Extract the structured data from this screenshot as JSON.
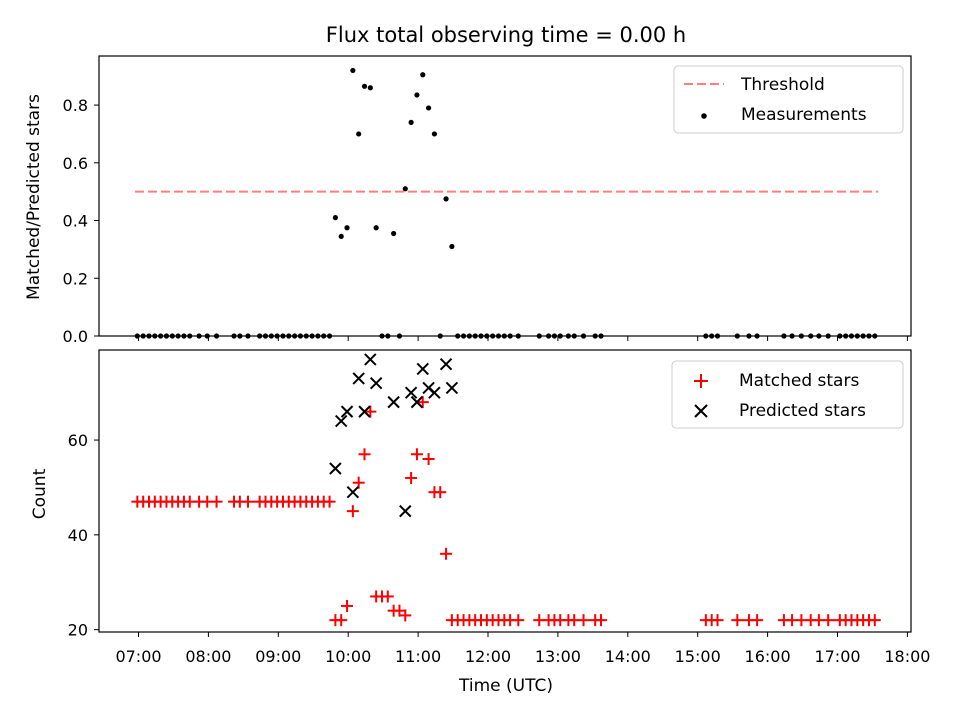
{
  "chart_data": {
    "type": "scatter",
    "title": "Flux total observing time = 0.00 h",
    "xlabel": "Time (UTC)",
    "x_ticks": [
      "07:00",
      "08:00",
      "09:00",
      "10:00",
      "11:00",
      "12:00",
      "13:00",
      "14:00",
      "15:00",
      "16:00",
      "17:00",
      "18:00"
    ],
    "top": {
      "ylabel": "Matched/Predicted stars",
      "ylim": [
        0,
        0.97
      ],
      "y_ticks": [
        "0.0",
        "0.2",
        "0.4",
        "0.6",
        "0.8"
      ],
      "threshold": {
        "name": "Threshold",
        "value": 0.5,
        "x_range": [
          "06:57",
          "17:35"
        ],
        "color": "#ff7f7f"
      },
      "measurements": {
        "name": "Measurements",
        "color": "#000000",
        "points": [
          [
            "06:59",
            0
          ],
          [
            "07:04",
            0
          ],
          [
            "07:09",
            0
          ],
          [
            "07:14",
            0
          ],
          [
            "07:19",
            0
          ],
          [
            "07:24",
            0
          ],
          [
            "07:29",
            0
          ],
          [
            "07:34",
            0
          ],
          [
            "07:39",
            0
          ],
          [
            "07:44",
            0
          ],
          [
            "07:52",
            0
          ],
          [
            "07:59",
            0
          ],
          [
            "08:07",
            0
          ],
          [
            "08:22",
            0
          ],
          [
            "08:27",
            0
          ],
          [
            "08:34",
            0
          ],
          [
            "08:44",
            0
          ],
          [
            "08:49",
            0
          ],
          [
            "08:54",
            0
          ],
          [
            "08:59",
            0
          ],
          [
            "09:04",
            0
          ],
          [
            "09:09",
            0
          ],
          [
            "09:14",
            0
          ],
          [
            "09:19",
            0
          ],
          [
            "09:24",
            0
          ],
          [
            "09:29",
            0
          ],
          [
            "09:34",
            0
          ],
          [
            "09:39",
            0
          ],
          [
            "09:44",
            0
          ],
          [
            "09:49",
            0.41
          ],
          [
            "09:54",
            0.345
          ],
          [
            "09:59",
            0.375
          ],
          [
            "10:04",
            0.92
          ],
          [
            "10:09",
            0.7
          ],
          [
            "10:14",
            0.865
          ],
          [
            "10:19",
            0.86
          ],
          [
            "10:24",
            0.375
          ],
          [
            "10:29",
            0
          ],
          [
            "10:34",
            0
          ],
          [
            "10:39",
            0.355
          ],
          [
            "10:44",
            0
          ],
          [
            "10:49",
            0.51
          ],
          [
            "10:54",
            0.74
          ],
          [
            "10:59",
            0.835
          ],
          [
            "11:04",
            0.905
          ],
          [
            "11:09",
            0.79
          ],
          [
            "11:14",
            0.7
          ],
          [
            "11:19",
            0
          ],
          [
            "11:24",
            0.475
          ],
          [
            "11:29",
            0.31
          ],
          [
            "11:34",
            0
          ],
          [
            "11:39",
            0
          ],
          [
            "11:44",
            0
          ],
          [
            "11:49",
            0
          ],
          [
            "11:54",
            0
          ],
          [
            "11:59",
            0
          ],
          [
            "12:04",
            0
          ],
          [
            "12:09",
            0
          ],
          [
            "12:14",
            0
          ],
          [
            "12:19",
            0
          ],
          [
            "12:26",
            0
          ],
          [
            "12:44",
            0
          ],
          [
            "12:52",
            0
          ],
          [
            "12:57",
            0
          ],
          [
            "13:02",
            0
          ],
          [
            "13:09",
            0
          ],
          [
            "13:14",
            0
          ],
          [
            "13:22",
            0
          ],
          [
            "13:32",
            0
          ],
          [
            "13:37",
            0
          ],
          [
            "15:07",
            0
          ],
          [
            "15:12",
            0
          ],
          [
            "15:17",
            0
          ],
          [
            "15:34",
            0
          ],
          [
            "15:44",
            0
          ],
          [
            "15:51",
            0
          ],
          [
            "16:14",
            0
          ],
          [
            "16:21",
            0
          ],
          [
            "16:29",
            0
          ],
          [
            "16:37",
            0
          ],
          [
            "16:44",
            0
          ],
          [
            "16:52",
            0
          ],
          [
            "17:02",
            0
          ],
          [
            "17:07",
            0
          ],
          [
            "17:12",
            0
          ],
          [
            "17:17",
            0
          ],
          [
            "17:22",
            0
          ],
          [
            "17:27",
            0
          ],
          [
            "17:32",
            0
          ]
        ]
      },
      "legend_position": "upper-right"
    },
    "bottom": {
      "ylabel": "Count",
      "ylim": [
        19.5,
        79
      ],
      "y_ticks": [
        "20",
        "40",
        "60"
      ],
      "series": [
        {
          "name": "Matched stars",
          "marker": "+",
          "color": "#ff0000",
          "points": [
            [
              "06:59",
              47
            ],
            [
              "07:04",
              47
            ],
            [
              "07:09",
              47
            ],
            [
              "07:14",
              47
            ],
            [
              "07:19",
              47
            ],
            [
              "07:24",
              47
            ],
            [
              "07:29",
              47
            ],
            [
              "07:34",
              47
            ],
            [
              "07:39",
              47
            ],
            [
              "07:44",
              47
            ],
            [
              "07:52",
              47
            ],
            [
              "07:59",
              47
            ],
            [
              "08:07",
              47
            ],
            [
              "08:22",
              47
            ],
            [
              "08:27",
              47
            ],
            [
              "08:34",
              47
            ],
            [
              "08:44",
              47
            ],
            [
              "08:49",
              47
            ],
            [
              "08:54",
              47
            ],
            [
              "08:59",
              47
            ],
            [
              "09:04",
              47
            ],
            [
              "09:09",
              47
            ],
            [
              "09:14",
              47
            ],
            [
              "09:19",
              47
            ],
            [
              "09:24",
              47
            ],
            [
              "09:29",
              47
            ],
            [
              "09:34",
              47
            ],
            [
              "09:39",
              47
            ],
            [
              "09:44",
              47
            ],
            [
              "09:49",
              22
            ],
            [
              "09:54",
              22
            ],
            [
              "09:59",
              25
            ],
            [
              "10:04",
              45
            ],
            [
              "10:09",
              51
            ],
            [
              "10:14",
              57
            ],
            [
              "10:19",
              66
            ],
            [
              "10:24",
              27
            ],
            [
              "10:29",
              27
            ],
            [
              "10:34",
              27
            ],
            [
              "10:39",
              24
            ],
            [
              "10:44",
              24
            ],
            [
              "10:49",
              23
            ],
            [
              "10:54",
              52
            ],
            [
              "10:59",
              57
            ],
            [
              "11:04",
              68
            ],
            [
              "11:09",
              56
            ],
            [
              "11:14",
              49
            ],
            [
              "11:19",
              49
            ],
            [
              "11:24",
              36
            ],
            [
              "11:29",
              22
            ],
            [
              "11:34",
              22
            ],
            [
              "11:39",
              22
            ],
            [
              "11:44",
              22
            ],
            [
              "11:49",
              22
            ],
            [
              "11:54",
              22
            ],
            [
              "11:59",
              22
            ],
            [
              "12:04",
              22
            ],
            [
              "12:09",
              22
            ],
            [
              "12:14",
              22
            ],
            [
              "12:19",
              22
            ],
            [
              "12:26",
              22
            ],
            [
              "12:44",
              22
            ],
            [
              "12:52",
              22
            ],
            [
              "12:57",
              22
            ],
            [
              "13:02",
              22
            ],
            [
              "13:09",
              22
            ],
            [
              "13:14",
              22
            ],
            [
              "13:22",
              22
            ],
            [
              "13:32",
              22
            ],
            [
              "13:37",
              22
            ],
            [
              "15:07",
              22
            ],
            [
              "15:12",
              22
            ],
            [
              "15:17",
              22
            ],
            [
              "15:34",
              22
            ],
            [
              "15:44",
              22
            ],
            [
              "15:51",
              22
            ],
            [
              "16:14",
              22
            ],
            [
              "16:21",
              22
            ],
            [
              "16:29",
              22
            ],
            [
              "16:37",
              22
            ],
            [
              "16:44",
              22
            ],
            [
              "16:52",
              22
            ],
            [
              "17:02",
              22
            ],
            [
              "17:07",
              22
            ],
            [
              "17:12",
              22
            ],
            [
              "17:17",
              22
            ],
            [
              "17:22",
              22
            ],
            [
              "17:27",
              22
            ],
            [
              "17:32",
              22
            ]
          ]
        },
        {
          "name": "Predicted stars",
          "marker": "x",
          "color": "#000000",
          "points": [
            [
              "09:49",
              54
            ],
            [
              "09:54",
              64
            ],
            [
              "09:59",
              66
            ],
            [
              "10:04",
              49
            ],
            [
              "10:09",
              73
            ],
            [
              "10:14",
              66
            ],
            [
              "10:19",
              77
            ],
            [
              "10:24",
              72
            ],
            [
              "10:39",
              68
            ],
            [
              "10:49",
              45
            ],
            [
              "10:54",
              70
            ],
            [
              "10:59",
              68
            ],
            [
              "11:04",
              75
            ],
            [
              "11:09",
              71
            ],
            [
              "11:14",
              70
            ],
            [
              "11:24",
              76
            ],
            [
              "11:29",
              71
            ]
          ]
        }
      ],
      "legend_position": "upper-right"
    }
  }
}
